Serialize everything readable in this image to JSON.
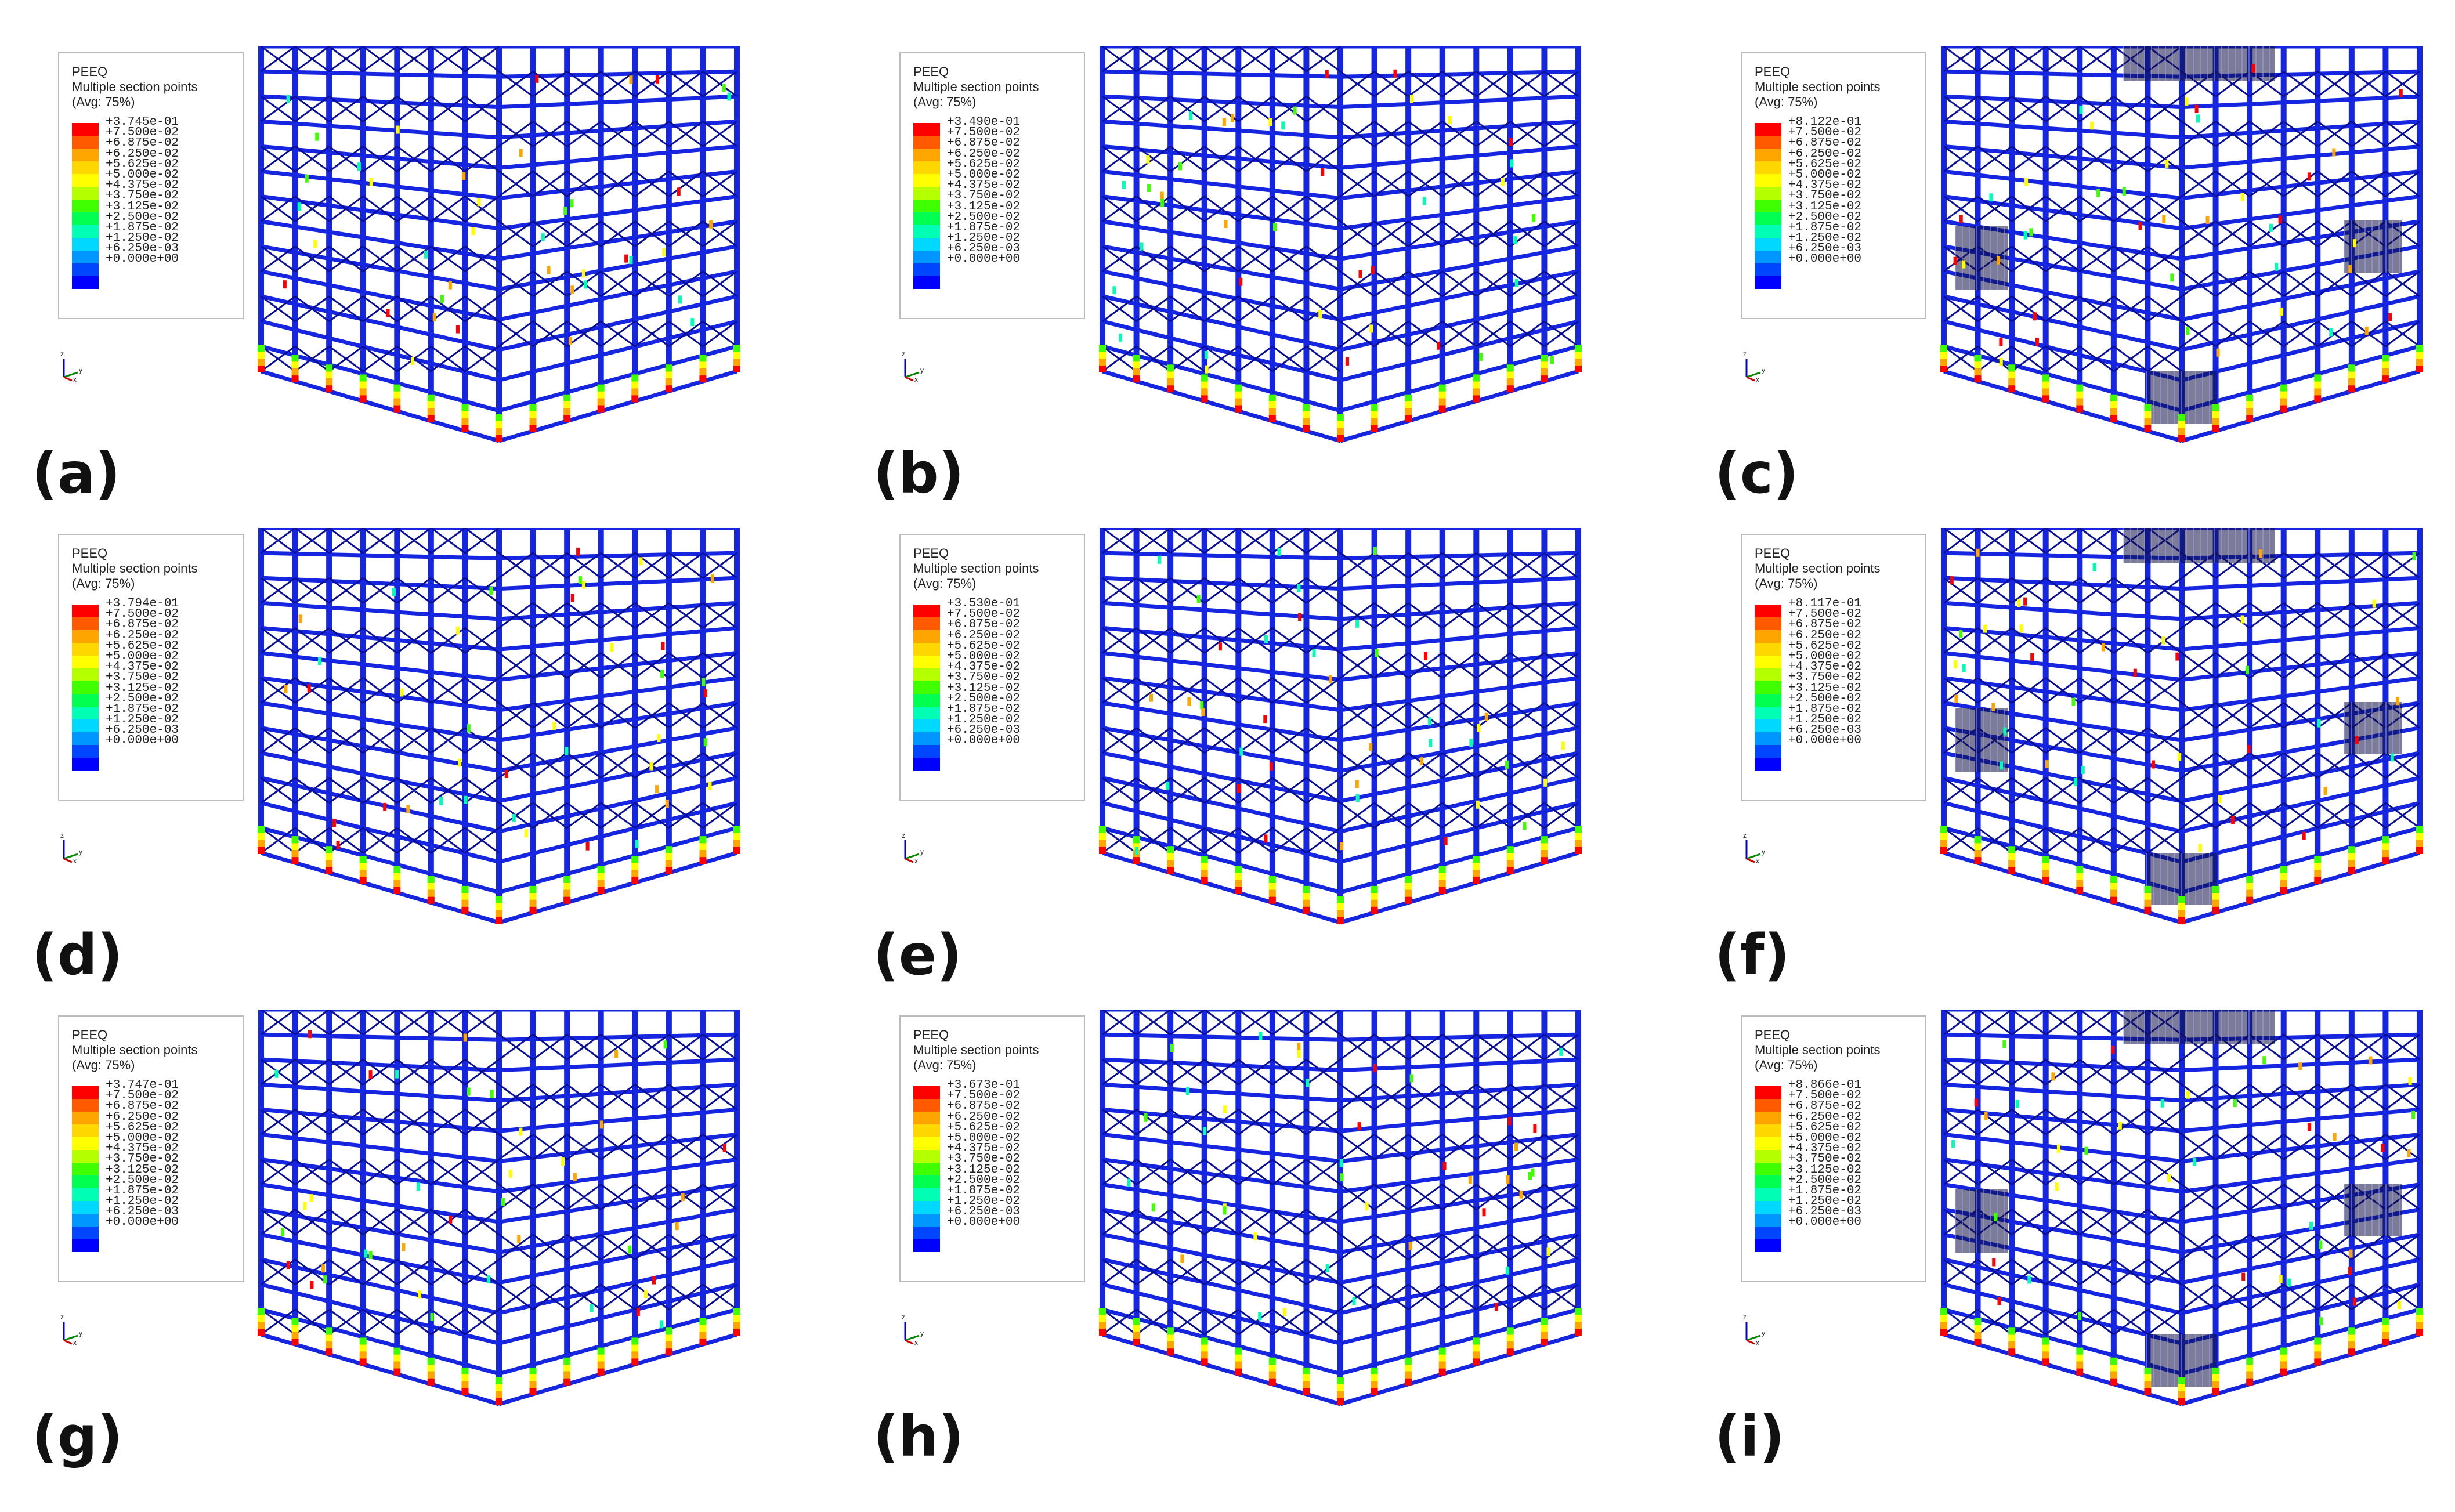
{
  "legend_common": {
    "variable": "PEEQ",
    "line2": "Multiple section points",
    "line3": "(Avg: 75%)",
    "values": [
      "+7.500e-02",
      "+6.875e-02",
      "+6.250e-02",
      "+5.625e-02",
      "+5.000e-02",
      "+4.375e-02",
      "+3.750e-02",
      "+3.125e-02",
      "+2.500e-02",
      "+1.875e-02",
      "+1.250e-02",
      "+6.250e-03",
      "+0.000e+00"
    ]
  },
  "colorbar_colors": [
    "#ff0000",
    "#ff5a00",
    "#ffa500",
    "#ffd700",
    "#ffff00",
    "#b4ff00",
    "#40ff00",
    "#00ff50",
    "#00ffb4",
    "#00d8ff",
    "#0096ff",
    "#0046ff",
    "#0000ff"
  ],
  "triad": {
    "z": "z",
    "y": "y",
    "x": "x"
  },
  "panels": [
    {
      "label": "(a)",
      "max": "+3.745e-01",
      "variant": "fixed"
    },
    {
      "label": "(b)",
      "max": "+3.490e-01",
      "variant": "fixed"
    },
    {
      "label": "(c)",
      "max": "+8.122e-01",
      "variant": "isolated"
    },
    {
      "label": "(d)",
      "max": "+3.794e-01",
      "variant": "fixed"
    },
    {
      "label": "(e)",
      "max": "+3.530e-01",
      "variant": "fixed"
    },
    {
      "label": "(f)",
      "max": "+8.117e-01",
      "variant": "isolated"
    },
    {
      "label": "(g)",
      "max": "+3.747e-01",
      "variant": "fixed"
    },
    {
      "label": "(h)",
      "max": "+3.673e-01",
      "variant": "fixed"
    },
    {
      "label": "(i)",
      "max": "+8.866e-01",
      "variant": "isolated"
    }
  ]
}
